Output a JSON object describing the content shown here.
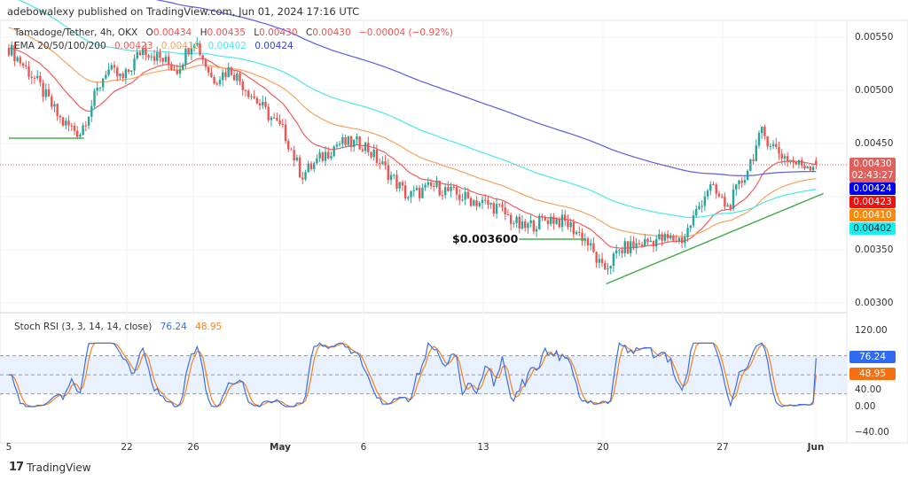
{
  "header": {
    "published": "adebowalexy published on TradingView.com, Jun 01, 2024 17:16 UTC"
  },
  "legend": {
    "symbol": "Tamadoge/Tether, 4h, OKX",
    "open_label": "O",
    "open": "0.00434",
    "high_label": "H",
    "high": "0.00435",
    "low_label": "L",
    "low": "0.00430",
    "close_label": "C",
    "close": "0.00430",
    "change": "−0.00004 (−0.92%)",
    "ema_label": "EMA 20/50/100/200",
    "ema20": "0.00423",
    "ema50": "0.00410",
    "ema100": "0.00402",
    "ema200": "0.00424"
  },
  "price_tags": {
    "last": "0.00430",
    "countdown": "02:43:27",
    "ema200": "0.00424",
    "ema20": "0.00423",
    "ema50": "0.00410",
    "ema100": "0.00402"
  },
  "price_axis": [
    "0.00550",
    "0.00500",
    "0.00450",
    "0.00350",
    "0.00300"
  ],
  "stoch": {
    "label": "Stoch RSI (3, 3, 14, 14, close)",
    "k": "76.24",
    "d": "48.95",
    "axis": [
      "120.00",
      "40.00",
      "0.00",
      "−40.00"
    ]
  },
  "time_axis": [
    "5",
    "22",
    "26",
    "May",
    "6",
    "13",
    "20",
    "27",
    "Jun"
  ],
  "annotation": {
    "support_label": "$0.003600"
  },
  "footer": {
    "brand": "TradingView"
  },
  "colors": {
    "up": "#26a69a",
    "down": "#ef5350",
    "ema20": "#f15c5c",
    "ema50": "#f7a35c",
    "ema100": "#4de8e8",
    "ema200": "#5b5bdf",
    "stoch_k": "#3b6fe0",
    "stoch_d": "#f5821f",
    "annotation": "#4caf50"
  },
  "chart_data": {
    "type": "candlestick",
    "title": "Tamadoge/Tether, 4h, OKX",
    "x_unit": "days since Apr 15, 2024",
    "close_waypoints": [
      [
        0,
        0.0054
      ],
      [
        1.55,
        0.0051
      ],
      [
        3.1,
        0.0047
      ],
      [
        4.15,
        0.0046
      ],
      [
        5.7,
        0.0052
      ],
      [
        6.7,
        0.0051
      ],
      [
        7.8,
        0.0054
      ],
      [
        9.85,
        0.0052
      ],
      [
        10.8,
        0.0055
      ],
      [
        11.9,
        0.0051
      ],
      [
        12.95,
        0.0052
      ],
      [
        15.0,
        0.0048
      ],
      [
        16.1,
        0.0046
      ],
      [
        17.1,
        0.0042
      ],
      [
        19.2,
        0.0045
      ],
      [
        20.7,
        0.0045
      ],
      [
        22.3,
        0.0042
      ],
      [
        23.3,
        0.004
      ],
      [
        24.9,
        0.0041
      ],
      [
        26.4,
        0.004
      ],
      [
        28.5,
        0.0039
      ],
      [
        30.0,
        0.0037
      ],
      [
        31.6,
        0.0038
      ],
      [
        32.6,
        0.00375
      ],
      [
        33.7,
        0.0036
      ],
      [
        34.7,
        0.0033
      ],
      [
        35.75,
        0.0035
      ],
      [
        37.8,
        0.0036
      ],
      [
        39.4,
        0.0036
      ],
      [
        40.9,
        0.0041
      ],
      [
        42.0,
        0.0039
      ],
      [
        43.0,
        0.0042
      ],
      [
        44.0,
        0.0046
      ],
      [
        45.1,
        0.0044
      ],
      [
        46.1,
        0.0043
      ],
      [
        47.25,
        0.0043
      ]
    ],
    "ylim": [
      0.0029,
      0.0057
    ],
    "ema_periods": [
      20,
      50,
      100,
      200
    ],
    "horizontal_levels": [
      {
        "price": 0.00455,
        "from_day": 0,
        "to_day": 4.4
      },
      {
        "price": 0.0036,
        "from_day": 29.8,
        "to_day": 33.7
      }
    ],
    "trendline": {
      "from": [
        34.9,
        0.00318
      ],
      "to": [
        47.6,
        0.00403
      ]
    },
    "stoch_rsi": {
      "k_last": 76.24,
      "d_last": 48.95,
      "upper_band": 80,
      "lower_band": 20,
      "ylim": [
        -40,
        120
      ]
    }
  }
}
